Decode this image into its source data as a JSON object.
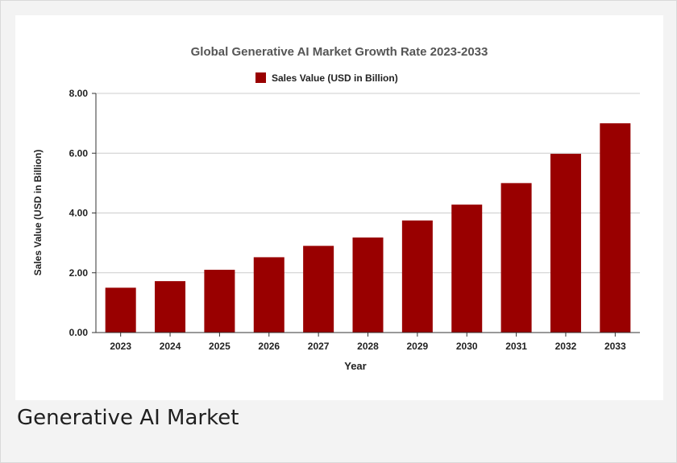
{
  "caption": "Generative AI Market",
  "chart_data": {
    "type": "bar",
    "title": "Global Generative AI Market Growth Rate 2023-2033",
    "xlabel": "Year",
    "ylabel": "Sales Value (USD in Billion)",
    "ylim": [
      0,
      8
    ],
    "yticks": [
      "0.00",
      "2.00",
      "4.00",
      "6.00",
      "8.00"
    ],
    "categories": [
      "2023",
      "2024",
      "2025",
      "2026",
      "2027",
      "2028",
      "2029",
      "2030",
      "2031",
      "2032",
      "2033"
    ],
    "series": [
      {
        "name": "Sales Value (USD in Billion)",
        "color": "#990000",
        "values": [
          1.5,
          1.72,
          2.1,
          2.52,
          2.9,
          3.18,
          3.75,
          4.28,
          5.0,
          5.98,
          7.0
        ]
      }
    ],
    "grid": true,
    "legend": "top-center"
  }
}
